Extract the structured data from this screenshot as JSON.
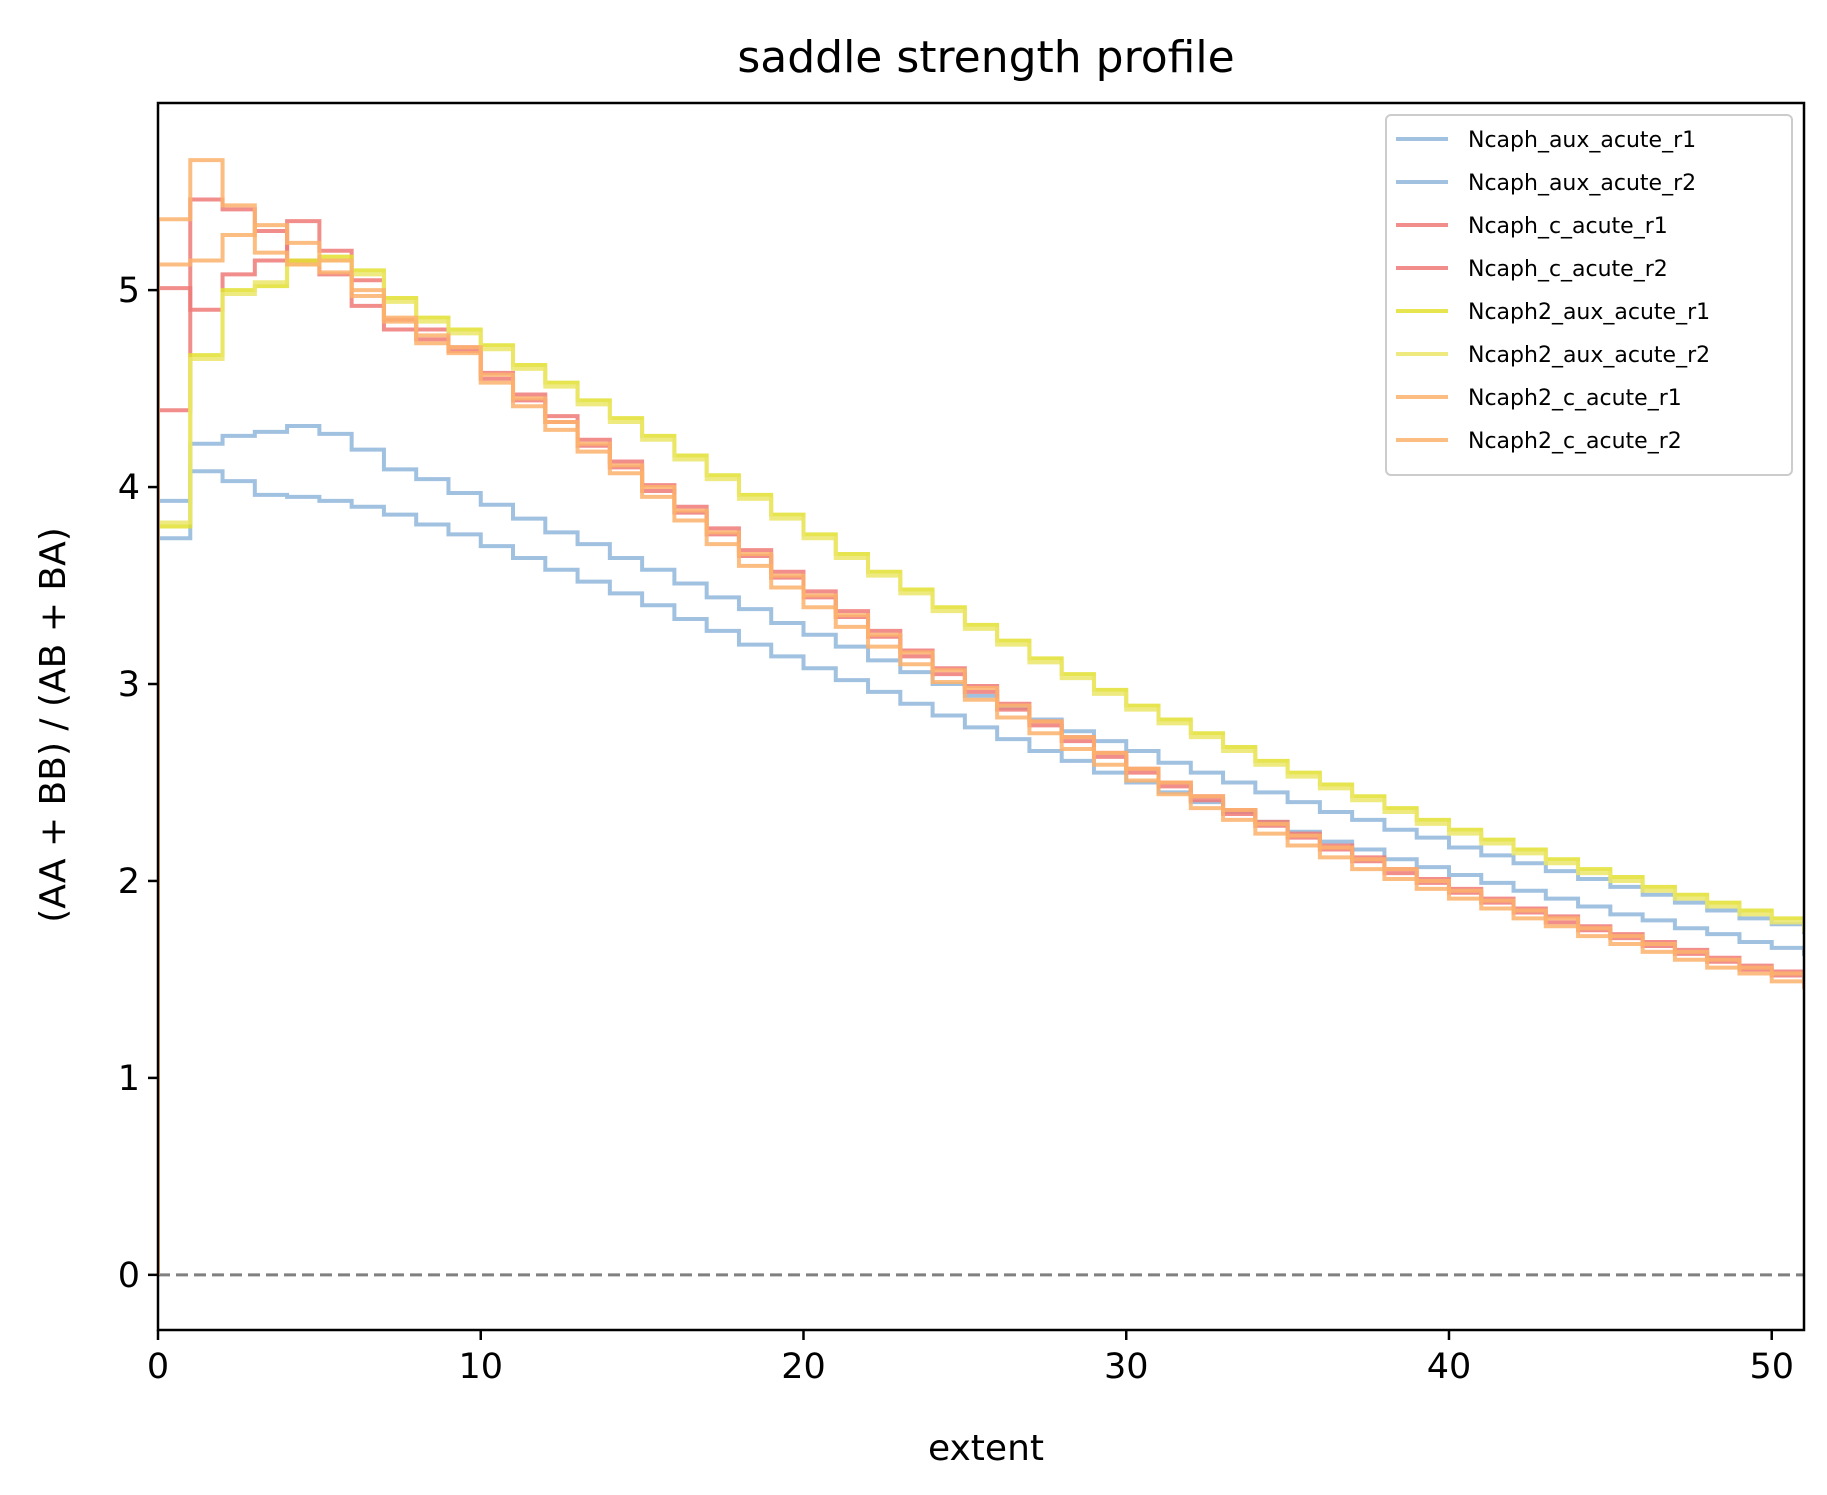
{
  "chart_data": {
    "type": "line",
    "step": "post",
    "title": "saddle strength profile",
    "xlabel": "extent",
    "ylabel": "(AA + BB) / (AB + BA)",
    "xlim": [
      0,
      51
    ],
    "ylim": [
      -0.28,
      5.95
    ],
    "xticks": [
      0,
      10,
      20,
      30,
      40,
      50
    ],
    "yticks": [
      0,
      1,
      2,
      3,
      4,
      5
    ],
    "xtick_labels": [
      "0",
      "10",
      "20",
      "30",
      "40",
      "50"
    ],
    "ytick_labels": [
      "0",
      "1",
      "2",
      "3",
      "4",
      "5"
    ],
    "grid": false,
    "legend_position": "top-right",
    "reference_line": {
      "y": 0,
      "style": "dashed",
      "color": "#808080"
    },
    "x": [
      0,
      1,
      2,
      3,
      4,
      5,
      6,
      7,
      8,
      9,
      10,
      11,
      12,
      13,
      14,
      15,
      16,
      17,
      18,
      19,
      20,
      21,
      22,
      23,
      24,
      25,
      26,
      27,
      28,
      29,
      30,
      31,
      32,
      33,
      34,
      35,
      36,
      37,
      38,
      39,
      40,
      41,
      42,
      43,
      44,
      45,
      46,
      47,
      48,
      49,
      50,
      51
    ],
    "series": [
      {
        "name": "Ncaph_aux_acute_r1",
        "color": "#8fb6da",
        "values": [
          3.93,
          4.22,
          4.26,
          4.28,
          4.31,
          4.27,
          4.19,
          4.09,
          4.04,
          3.97,
          3.91,
          3.84,
          3.77,
          3.71,
          3.64,
          3.58,
          3.51,
          3.44,
          3.38,
          3.31,
          3.25,
          3.19,
          3.12,
          3.06,
          3.0,
          2.94,
          2.88,
          2.82,
          2.76,
          2.71,
          2.66,
          2.6,
          2.55,
          2.5,
          2.45,
          2.4,
          2.35,
          2.31,
          2.26,
          2.22,
          2.17,
          2.13,
          2.09,
          2.05,
          2.01,
          1.97,
          1.93,
          1.89,
          1.85,
          1.81,
          1.78,
          1.74
        ]
      },
      {
        "name": "Ncaph_aux_acute_r2",
        "color": "#8fb6da",
        "values": [
          3.74,
          4.08,
          4.03,
          3.96,
          3.95,
          3.93,
          3.9,
          3.86,
          3.81,
          3.76,
          3.7,
          3.64,
          3.58,
          3.52,
          3.46,
          3.4,
          3.33,
          3.27,
          3.2,
          3.14,
          3.08,
          3.02,
          2.96,
          2.9,
          2.84,
          2.78,
          2.72,
          2.66,
          2.61,
          2.55,
          2.5,
          2.45,
          2.4,
          2.35,
          2.3,
          2.25,
          2.2,
          2.16,
          2.11,
          2.07,
          2.03,
          1.99,
          1.95,
          1.91,
          1.87,
          1.83,
          1.8,
          1.76,
          1.73,
          1.69,
          1.66,
          1.63
        ]
      },
      {
        "name": "Ncaph_c_acute_r1",
        "color": "#ee7a78",
        "values": [
          4.39,
          5.46,
          5.41,
          5.3,
          5.15,
          5.08,
          4.92,
          4.8,
          4.75,
          4.69,
          4.55,
          4.44,
          4.33,
          4.21,
          4.1,
          3.98,
          3.87,
          3.76,
          3.65,
          3.54,
          3.44,
          3.34,
          3.24,
          3.14,
          3.05,
          2.96,
          2.87,
          2.79,
          2.71,
          2.63,
          2.55,
          2.48,
          2.41,
          2.34,
          2.28,
          2.22,
          2.16,
          2.1,
          2.04,
          1.99,
          1.94,
          1.89,
          1.84,
          1.79,
          1.75,
          1.71,
          1.67,
          1.63,
          1.59,
          1.55,
          1.52,
          1.48
        ]
      },
      {
        "name": "Ncaph_c_acute_r2",
        "color": "#ee7a78",
        "values": [
          5.01,
          4.9,
          5.08,
          5.15,
          5.35,
          5.2,
          5.05,
          4.85,
          4.8,
          4.71,
          4.58,
          4.47,
          4.36,
          4.24,
          4.13,
          4.01,
          3.9,
          3.79,
          3.68,
          3.57,
          3.47,
          3.37,
          3.27,
          3.17,
          3.08,
          2.99,
          2.9,
          2.81,
          2.73,
          2.65,
          2.57,
          2.5,
          2.43,
          2.36,
          2.3,
          2.24,
          2.18,
          2.12,
          2.06,
          2.01,
          1.96,
          1.91,
          1.86,
          1.82,
          1.77,
          1.73,
          1.69,
          1.65,
          1.61,
          1.57,
          1.54,
          1.5
        ]
      },
      {
        "name": "Ncaph2_aux_acute_r1",
        "color": "#e2e030",
        "values": [
          3.8,
          4.67,
          5.0,
          5.02,
          5.15,
          5.17,
          5.1,
          4.96,
          4.86,
          4.8,
          4.72,
          4.62,
          4.53,
          4.44,
          4.35,
          4.26,
          4.16,
          4.06,
          3.96,
          3.86,
          3.76,
          3.66,
          3.57,
          3.48,
          3.39,
          3.3,
          3.22,
          3.13,
          3.05,
          2.97,
          2.89,
          2.82,
          2.75,
          2.68,
          2.61,
          2.55,
          2.49,
          2.43,
          2.37,
          2.31,
          2.26,
          2.21,
          2.16,
          2.11,
          2.06,
          2.02,
          1.97,
          1.93,
          1.89,
          1.85,
          1.81,
          1.77
        ]
      },
      {
        "name": "Ncaph2_aux_acute_r2",
        "color": "#ebe66a",
        "values": [
          3.82,
          4.65,
          4.98,
          5.04,
          5.13,
          5.15,
          5.08,
          4.94,
          4.84,
          4.78,
          4.7,
          4.6,
          4.51,
          4.42,
          4.33,
          4.24,
          4.14,
          4.04,
          3.94,
          3.84,
          3.74,
          3.64,
          3.55,
          3.46,
          3.37,
          3.28,
          3.2,
          3.11,
          3.03,
          2.95,
          2.87,
          2.8,
          2.73,
          2.66,
          2.59,
          2.53,
          2.47,
          2.41,
          2.35,
          2.29,
          2.24,
          2.19,
          2.14,
          2.09,
          2.04,
          2.0,
          1.95,
          1.91,
          1.87,
          1.83,
          1.79,
          1.75
        ]
      },
      {
        "name": "Ncaph2_c_acute_r1",
        "color": "#fbb26c",
        "values": [
          5.36,
          5.66,
          5.43,
          5.19,
          5.13,
          5.09,
          4.97,
          4.84,
          4.73,
          4.68,
          4.53,
          4.41,
          4.29,
          4.18,
          4.07,
          3.95,
          3.83,
          3.71,
          3.6,
          3.49,
          3.39,
          3.29,
          3.19,
          3.1,
          3.01,
          2.92,
          2.83,
          2.75,
          2.67,
          2.59,
          2.51,
          2.44,
          2.37,
          2.31,
          2.24,
          2.18,
          2.12,
          2.06,
          2.01,
          1.96,
          1.91,
          1.86,
          1.81,
          1.77,
          1.72,
          1.68,
          1.64,
          1.6,
          1.56,
          1.53,
          1.49,
          1.46
        ]
      },
      {
        "name": "Ncaph2_c_acute_r2",
        "color": "#fbb26c",
        "values": [
          5.13,
          5.15,
          5.28,
          5.33,
          5.24,
          5.15,
          5.0,
          4.86,
          4.77,
          4.71,
          4.57,
          4.45,
          4.33,
          4.22,
          4.11,
          4.0,
          3.88,
          3.77,
          3.66,
          3.55,
          3.45,
          3.35,
          3.25,
          3.16,
          3.07,
          2.98,
          2.89,
          2.81,
          2.73,
          2.65,
          2.57,
          2.5,
          2.43,
          2.36,
          2.29,
          2.23,
          2.17,
          2.11,
          2.06,
          2.0,
          1.95,
          1.9,
          1.85,
          1.81,
          1.76,
          1.72,
          1.68,
          1.64,
          1.6,
          1.56,
          1.53,
          1.49
        ]
      }
    ]
  }
}
